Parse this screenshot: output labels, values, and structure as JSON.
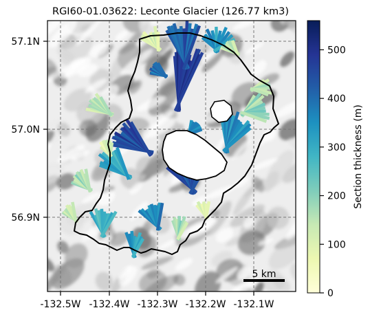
{
  "title": "RGI60-01.03622: Leconte Glacier (126.77 km3)",
  "map": {
    "x_ticks": [
      "-132.5W",
      "-132.4W",
      "-132.3W",
      "-132.2W",
      "-132.1W"
    ],
    "y_ticks": [
      "57.1N",
      "57.0N",
      "56.9N"
    ],
    "scale_bar_label": "5 km",
    "gridlines": true,
    "background": "hillshade relief (grayscale)"
  },
  "colorbar": {
    "label": "Section thickness (m)",
    "ticks": [
      "0",
      "100",
      "200",
      "300",
      "400",
      "500"
    ],
    "range": [
      0,
      560
    ],
    "colormap": "YlGnBu",
    "colors": [
      "#ffffd9",
      "#edf8b1",
      "#c7e9b4",
      "#7fcdbb",
      "#41b6c4",
      "#1d91c0",
      "#225ea8",
      "#253494",
      "#081d58"
    ]
  }
}
